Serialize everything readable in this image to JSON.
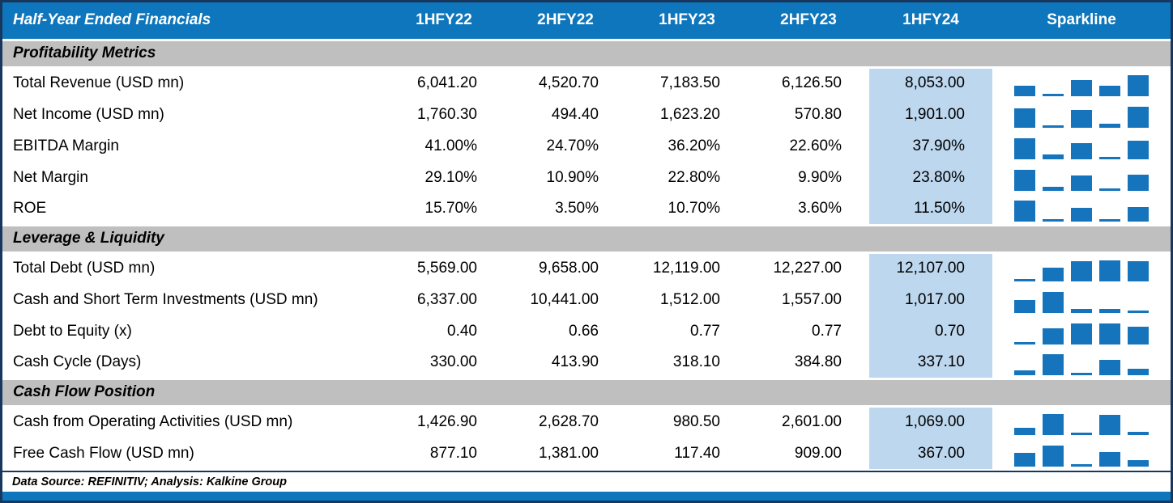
{
  "chart_data": {
    "type": "table",
    "title": "Half-Year Ended Financials",
    "columns": [
      "1HFY22",
      "2HFY22",
      "1HFY23",
      "2HFY23",
      "1HFY24"
    ],
    "sparkline_label": "Sparkline",
    "highlighted_column": "1HFY24",
    "sections": [
      {
        "name": "Profitability Metrics",
        "rows": [
          {
            "label": "Total Revenue (USD mn)",
            "format": "number",
            "values": [
              6041.2,
              4520.7,
              7183.5,
              6126.5,
              8053.0
            ]
          },
          {
            "label": "Net Income (USD mn)",
            "format": "number",
            "values": [
              1760.3,
              494.4,
              1623.2,
              570.8,
              1901.0
            ]
          },
          {
            "label": "EBITDA Margin",
            "format": "percent",
            "values": [
              41.0,
              24.7,
              36.2,
              22.6,
              37.9
            ]
          },
          {
            "label": "Net Margin",
            "format": "percent",
            "values": [
              29.1,
              10.9,
              22.8,
              9.9,
              23.8
            ]
          },
          {
            "label": "ROE",
            "format": "percent",
            "values": [
              15.7,
              3.5,
              10.7,
              3.6,
              11.5
            ]
          }
        ]
      },
      {
        "name": "Leverage & Liquidity",
        "rows": [
          {
            "label": "Total Debt (USD mn)",
            "format": "number",
            "values": [
              5569.0,
              9658.0,
              12119.0,
              12227.0,
              12107.0
            ]
          },
          {
            "label": "Cash and Short Term Investments (USD mn)",
            "format": "number",
            "values": [
              6337.0,
              10441.0,
              1512.0,
              1557.0,
              1017.0
            ]
          },
          {
            "label": "Debt to Equity (x)",
            "format": "number",
            "values": [
              0.4,
              0.66,
              0.77,
              0.77,
              0.7
            ]
          },
          {
            "label": "Cash Cycle (Days)",
            "format": "number",
            "values": [
              330.0,
              413.9,
              318.1,
              384.8,
              337.1
            ]
          }
        ]
      },
      {
        "name": "Cash Flow Position",
        "rows": [
          {
            "label": "Cash from Operating Activities (USD mn)",
            "format": "number",
            "values": [
              1426.9,
              2628.7,
              980.5,
              2601.0,
              1069.0
            ]
          },
          {
            "label": "Free Cash Flow (USD mn)",
            "format": "number",
            "values": [
              877.1,
              1381.0,
              117.4,
              909.0,
              367.0
            ]
          }
        ]
      }
    ]
  },
  "footer": {
    "text": "Data Source: REFINITIV; Analysis: Kalkine Group"
  },
  "colors": {
    "header_blue": "#0E76BC",
    "section_gray": "#BFBFBF",
    "highlight_blue": "#BDD7EE",
    "spark_blue": "#1574BC",
    "border_navy": "#17375E",
    "bottom_bar_blue": "#0E76BC"
  }
}
